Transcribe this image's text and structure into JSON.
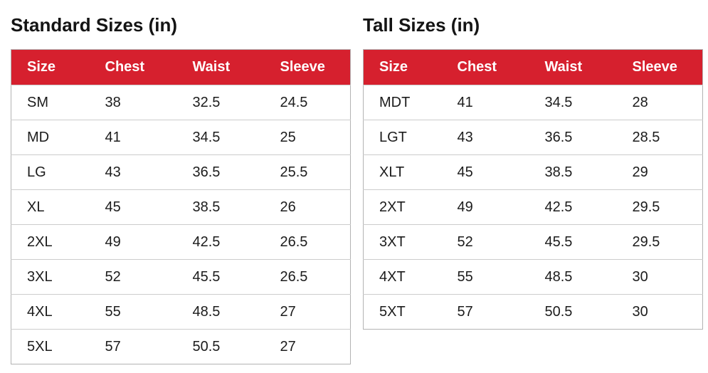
{
  "colors": {
    "header_bg": "#d6202e",
    "header_text": "#ffffff",
    "title_text": "#141414",
    "cell_text": "#1c1c1c",
    "outer_border": "#b3b3b3",
    "row_border": "#cccccc",
    "page_bg": "#ffffff"
  },
  "tables": [
    {
      "title": "Standard Sizes (in)",
      "columns": [
        "Size",
        "Chest",
        "Waist",
        "Sleeve"
      ],
      "rows": [
        [
          "SM",
          "38",
          "32.5",
          "24.5"
        ],
        [
          "MD",
          "41",
          "34.5",
          "25"
        ],
        [
          "LG",
          "43",
          "36.5",
          "25.5"
        ],
        [
          "XL",
          "45",
          "38.5",
          "26"
        ],
        [
          "2XL",
          "49",
          "42.5",
          "26.5"
        ],
        [
          "3XL",
          "52",
          "45.5",
          "26.5"
        ],
        [
          "4XL",
          "55",
          "48.5",
          "27"
        ],
        [
          "5XL",
          "57",
          "50.5",
          "27"
        ]
      ]
    },
    {
      "title": "Tall Sizes (in)",
      "columns": [
        "Size",
        "Chest",
        "Waist",
        "Sleeve"
      ],
      "rows": [
        [
          "MDT",
          "41",
          "34.5",
          "28"
        ],
        [
          "LGT",
          "43",
          "36.5",
          "28.5"
        ],
        [
          "XLT",
          "45",
          "38.5",
          "29"
        ],
        [
          "2XT",
          "49",
          "42.5",
          "29.5"
        ],
        [
          "3XT",
          "52",
          "45.5",
          "29.5"
        ],
        [
          "4XT",
          "55",
          "48.5",
          "30"
        ],
        [
          "5XT",
          "57",
          "50.5",
          "30"
        ]
      ]
    }
  ]
}
